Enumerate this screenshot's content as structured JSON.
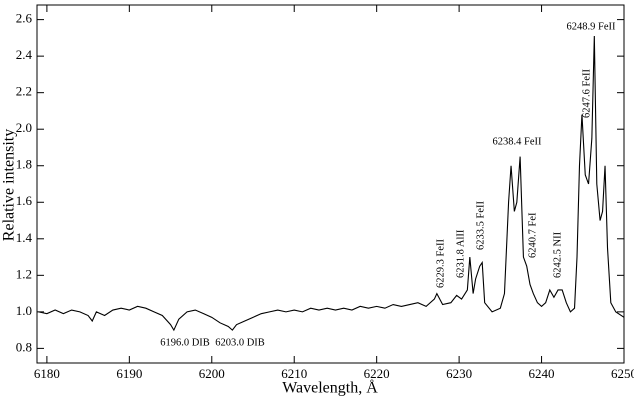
{
  "chart_data": {
    "type": "line",
    "xlabel": "Wavelength, Å",
    "ylabel": "Relative intensity",
    "x": [
      6179,
      6180,
      6181,
      6182,
      6183,
      6184,
      6185,
      6185.5,
      6186,
      6187,
      6188,
      6189,
      6190,
      6191,
      6192,
      6193,
      6194,
      6195,
      6195.4,
      6196,
      6197,
      6198,
      6199,
      6200,
      6201,
      6202,
      6202.5,
      6203,
      6204,
      6205,
      6206,
      6207,
      6208,
      6209,
      6210,
      6211,
      6212,
      6213,
      6214,
      6215,
      6216,
      6217,
      6218,
      6219,
      6220,
      6221,
      6222,
      6223,
      6224,
      6225,
      6226,
      6227,
      6227.3,
      6228,
      6229,
      6229.7,
      6230.3,
      6231,
      6231.3,
      6231.7,
      6232,
      6232.5,
      6232.8,
      6233.1,
      6234,
      6235,
      6235.5,
      6236,
      6236.3,
      6236.7,
      6237,
      6237.4,
      6237.8,
      6238.2,
      6238.6,
      6239,
      6239.5,
      6240,
      6240.5,
      6241,
      6241.5,
      6242,
      6242.5,
      6243,
      6243.5,
      6244,
      6244.3,
      6244.6,
      6244.9,
      6245.3,
      6245.7,
      6246.1,
      6246.4,
      6246.7,
      6247.1,
      6247.4,
      6247.7,
      6248,
      6248.4,
      6249,
      6250
    ],
    "values": [
      1.0,
      0.99,
      1.01,
      0.99,
      1.01,
      1.0,
      0.98,
      0.95,
      1.0,
      0.98,
      1.01,
      1.02,
      1.01,
      1.03,
      1.02,
      1.0,
      0.98,
      0.93,
      0.9,
      0.96,
      1.0,
      1.01,
      0.99,
      0.97,
      0.94,
      0.92,
      0.9,
      0.93,
      0.95,
      0.97,
      0.99,
      1.0,
      1.01,
      1.0,
      1.01,
      1.0,
      1.02,
      1.01,
      1.02,
      1.01,
      1.02,
      1.01,
      1.03,
      1.02,
      1.03,
      1.02,
      1.04,
      1.03,
      1.04,
      1.05,
      1.03,
      1.07,
      1.1,
      1.04,
      1.05,
      1.09,
      1.07,
      1.12,
      1.3,
      1.1,
      1.18,
      1.25,
      1.27,
      1.05,
      1.0,
      1.02,
      1.1,
      1.6,
      1.8,
      1.55,
      1.6,
      1.85,
      1.3,
      1.25,
      1.15,
      1.1,
      1.05,
      1.03,
      1.05,
      1.12,
      1.08,
      1.12,
      1.12,
      1.05,
      1.0,
      1.02,
      1.3,
      1.8,
      2.08,
      1.75,
      1.7,
      1.95,
      2.51,
      1.7,
      1.5,
      1.55,
      1.8,
      1.35,
      1.05,
      1.0,
      0.97
    ],
    "color": "#000000",
    "xlim": [
      6178.8,
      6250
    ],
    "xticks": [
      6180,
      6190,
      6200,
      6210,
      6220,
      6230,
      6240,
      6250
    ],
    "ylim": [
      0.72,
      2.68
    ],
    "yticks": [
      0.8,
      {
        "value": 1,
        "label": "1.0"
      },
      1.2,
      1.4,
      1.6,
      1.8,
      {
        "value": 2,
        "label": "2.0"
      },
      2.2,
      2.4,
      2.6
    ],
    "annotations": [
      "6196.0 DIB",
      "6203.0 DIB",
      "6229.3 FeII",
      "6231.8 AlII",
      "6233.5 FeII",
      "6238.4 FeII",
      "6240.7 FeI",
      "6242.5 NII",
      "6247.6 FeII",
      "6248.9 FeII"
    ]
  }
}
